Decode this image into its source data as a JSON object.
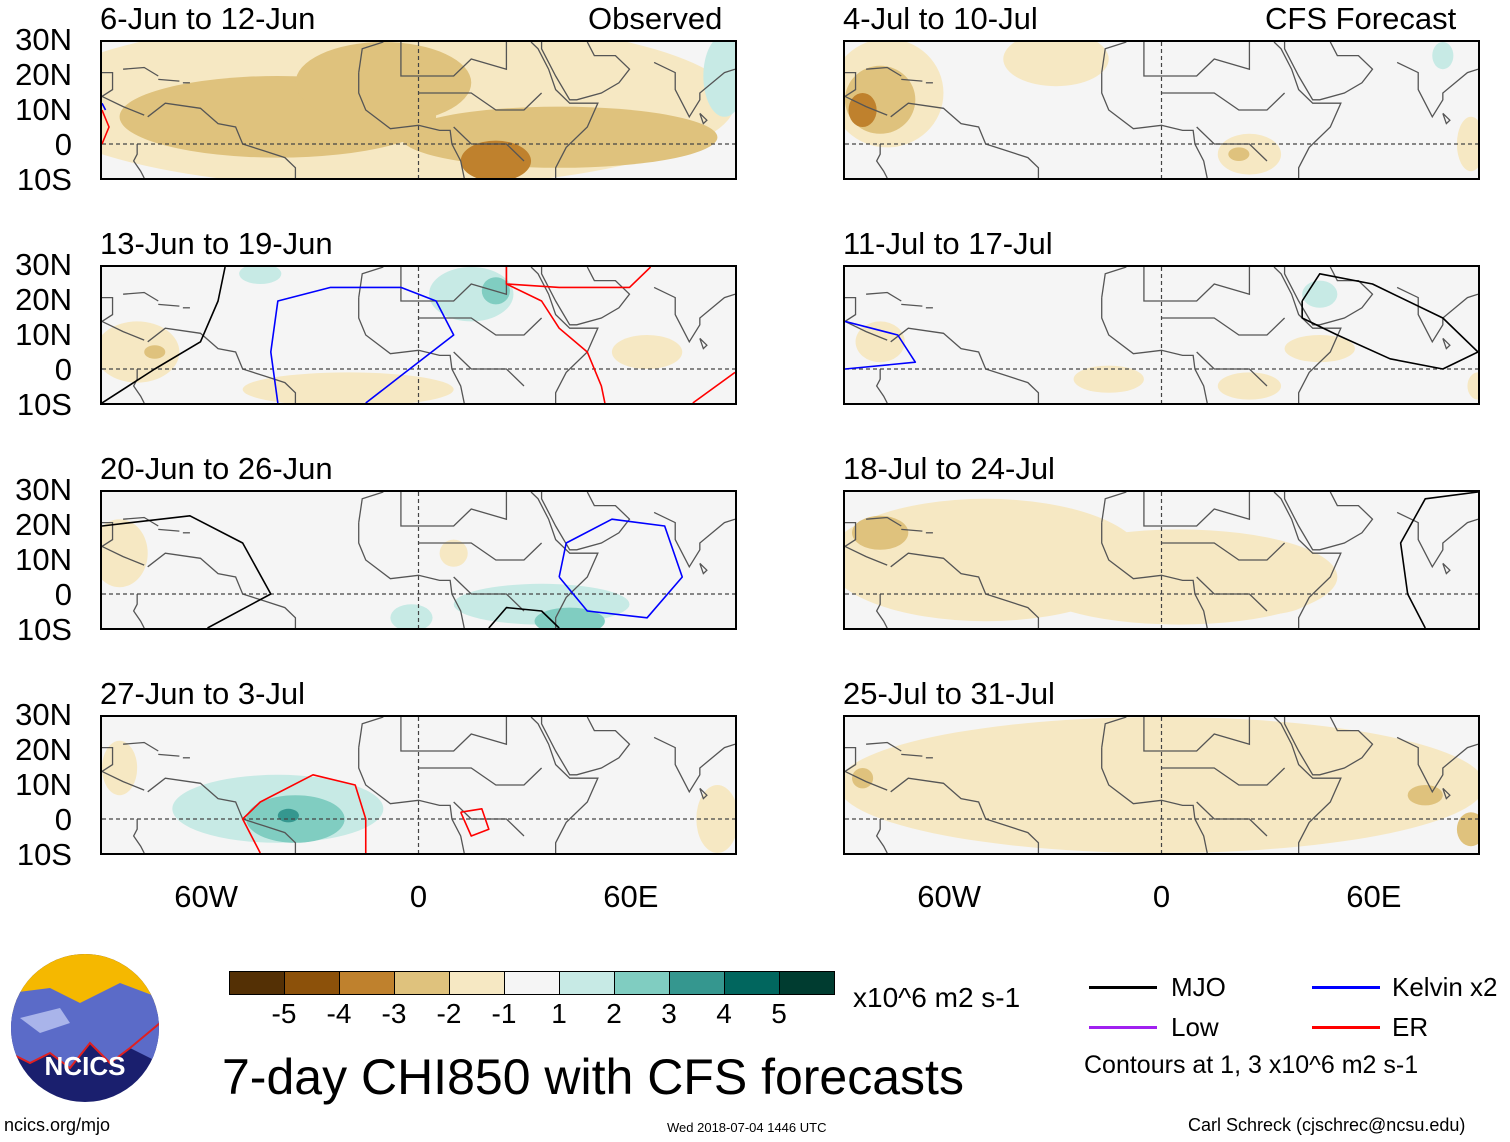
{
  "header": {
    "observed_label": "Observed",
    "forecast_label": "CFS Forecast"
  },
  "axes": {
    "lat_labels": [
      "30N",
      "20N",
      "10N",
      "0",
      "10S"
    ],
    "lon_labels": [
      "60W",
      "0",
      "60E"
    ],
    "lat_range": [
      -10,
      30
    ],
    "lon_range": [
      -90,
      90
    ]
  },
  "colors": {
    "levels": [
      -5,
      -4,
      -3,
      -2,
      -1,
      0,
      1,
      2,
      3,
      4,
      5
    ],
    "-5": "#543005",
    "-4": "#8c510a",
    "-3": "#bf812d",
    "-2": "#dfc27d",
    "-1": "#f6e8c3",
    "0": "#f5f5f5",
    "1": "#c7eae5",
    "2": "#80cdc1",
    "3": "#35978f",
    "4": "#01665e",
    "5": "#003c30",
    "mjo": "#000000",
    "kelvin": "#0000ff",
    "low": "#a020f0",
    "er": "#ff0000"
  },
  "panels": [
    {
      "title": "6-Jun to 12-Jun",
      "blobs": [
        [
          -10,
          12,
          100,
          25,
          -1
        ],
        [
          -40,
          8,
          45,
          12,
          -2
        ],
        [
          -10,
          18,
          25,
          12,
          -2
        ],
        [
          40,
          2,
          45,
          9,
          -2
        ],
        [
          22,
          -5,
          10,
          6,
          -3
        ],
        [
          87,
          20,
          6,
          12,
          1
        ]
      ],
      "contours": [
        {
          "type": "er",
          "pts": [
            [
              -90,
              10
            ],
            [
              -88,
              5
            ],
            [
              -90,
              0
            ]
          ]
        },
        {
          "type": "kelvin",
          "pts": [
            [
              -90,
              12
            ],
            [
              -89,
              10
            ]
          ]
        }
      ]
    },
    {
      "title": "13-Jun to 19-Jun",
      "blobs": [
        [
          -80,
          5,
          12,
          9,
          -1
        ],
        [
          -20,
          -6,
          30,
          5,
          -1
        ],
        [
          65,
          5,
          10,
          5,
          -1
        ],
        [
          -75,
          5,
          3,
          2,
          -2
        ],
        [
          15,
          22,
          12,
          8,
          1
        ],
        [
          -45,
          28,
          6,
          3,
          1
        ],
        [
          22,
          23,
          4,
          4,
          2
        ]
      ],
      "contours": [
        {
          "type": "mjo",
          "pts": [
            [
              -90,
              -10
            ],
            [
              -75,
              0
            ],
            [
              -62,
              8
            ],
            [
              -57,
              20
            ],
            [
              -55,
              30
            ]
          ]
        },
        {
          "type": "kelvin",
          "pts": [
            [
              -40,
              -10
            ],
            [
              -42,
              5
            ],
            [
              -40,
              20
            ],
            [
              -25,
              24
            ],
            [
              -5,
              24
            ],
            [
              5,
              20
            ],
            [
              10,
              10
            ],
            [
              -5,
              -2
            ],
            [
              -15,
              -10
            ]
          ]
        },
        {
          "type": "er",
          "pts": [
            [
              25,
              30
            ],
            [
              25,
              25
            ],
            [
              35,
              20
            ],
            [
              40,
              12
            ],
            [
              48,
              5
            ],
            [
              52,
              -5
            ],
            [
              53,
              -10
            ]
          ]
        },
        {
          "type": "er",
          "pts": [
            [
              25,
              25
            ],
            [
              40,
              24
            ],
            [
              60,
              24
            ],
            [
              66,
              30
            ]
          ]
        },
        {
          "type": "er",
          "pts": [
            [
              78,
              -10
            ],
            [
              90,
              -1
            ]
          ]
        }
      ]
    },
    {
      "title": "20-Jun to 26-Jun",
      "blobs": [
        [
          -85,
          12,
          8,
          10,
          -1
        ],
        [
          10,
          12,
          4,
          4,
          -1
        ],
        [
          35,
          -3,
          25,
          6,
          1
        ],
        [
          -2,
          -7,
          6,
          4,
          1
        ],
        [
          43,
          -8,
          10,
          4,
          2
        ]
      ],
      "contours": [
        {
          "type": "mjo",
          "pts": [
            [
              -90,
              20
            ],
            [
              -65,
              23
            ],
            [
              -50,
              15
            ],
            [
              -42,
              0
            ],
            [
              -60,
              -10
            ]
          ]
        },
        {
          "type": "mjo",
          "pts": [
            [
              20,
              -10
            ],
            [
              25,
              -4
            ],
            [
              35,
              -5
            ],
            [
              40,
              -10
            ]
          ]
        },
        {
          "type": "kelvin",
          "pts": [
            [
              40,
              5
            ],
            [
              42,
              15
            ],
            [
              55,
              22
            ],
            [
              70,
              20
            ],
            [
              75,
              5
            ],
            [
              65,
              -7
            ],
            [
              48,
              -5
            ],
            [
              40,
              5
            ]
          ]
        }
      ]
    },
    {
      "title": "27-Jun to 3-Jul",
      "blobs": [
        [
          -40,
          3,
          30,
          10,
          1
        ],
        [
          -35,
          0,
          14,
          7,
          2
        ],
        [
          -37,
          1,
          3,
          2,
          3
        ],
        [
          85,
          0,
          6,
          10,
          -1
        ],
        [
          -85,
          15,
          5,
          8,
          -1
        ]
      ],
      "contours": [
        {
          "type": "er",
          "pts": [
            [
              -45,
              -10
            ],
            [
              -50,
              0
            ],
            [
              -45,
              5
            ],
            [
              -30,
              13
            ],
            [
              -18,
              10
            ],
            [
              -15,
              0
            ],
            [
              -15,
              -10
            ]
          ]
        },
        {
          "type": "er",
          "pts": [
            [
              12,
              2
            ],
            [
              18,
              3
            ],
            [
              20,
              -3
            ],
            [
              15,
              -5
            ],
            [
              12,
              2
            ]
          ]
        }
      ]
    },
    {
      "title": "4-Jul to 10-Jul",
      "blobs": [
        [
          -78,
          15,
          16,
          16,
          -1
        ],
        [
          -30,
          25,
          15,
          8,
          -1
        ],
        [
          -80,
          13,
          10,
          10,
          -2
        ],
        [
          -85,
          10,
          4,
          5,
          -3
        ],
        [
          25,
          -3,
          9,
          6,
          -1
        ],
        [
          88,
          0,
          4,
          8,
          -1
        ],
        [
          22,
          -3,
          3,
          2,
          -2
        ],
        [
          80,
          26,
          3,
          4,
          1
        ]
      ],
      "contours": []
    },
    {
      "title": "11-Jul to 17-Jul",
      "blobs": [
        [
          -80,
          8,
          7,
          6,
          -1
        ],
        [
          -15,
          -3,
          10,
          4,
          -1
        ],
        [
          25,
          -5,
          9,
          4,
          -1
        ],
        [
          45,
          6,
          10,
          4,
          -1
        ],
        [
          90,
          -5,
          3,
          4,
          -1
        ],
        [
          45,
          22,
          5,
          4,
          1
        ]
      ],
      "contours": [
        {
          "type": "mjo",
          "pts": [
            [
              40,
              20
            ],
            [
              45,
              28
            ],
            [
              60,
              25
            ],
            [
              80,
              15
            ],
            [
              90,
              5
            ],
            [
              80,
              0
            ],
            [
              65,
              3
            ],
            [
              50,
              10
            ],
            [
              40,
              15
            ],
            [
              40,
              20
            ]
          ]
        },
        {
          "type": "kelvin",
          "pts": [
            [
              -90,
              0
            ],
            [
              -70,
              2
            ],
            [
              -75,
              10
            ],
            [
              -90,
              14
            ]
          ]
        }
      ]
    },
    {
      "title": "18-Jul to 24-Jul",
      "blobs": [
        [
          -50,
          10,
          45,
          18,
          -1
        ],
        [
          5,
          5,
          45,
          14,
          -1
        ],
        [
          30,
          2,
          15,
          8,
          -1
        ],
        [
          -80,
          18,
          8,
          5,
          -2
        ]
      ],
      "contours": [
        {
          "type": "mjo",
          "pts": [
            [
              90,
              30
            ],
            [
              75,
              28
            ],
            [
              68,
              15
            ],
            [
              70,
              0
            ],
            [
              75,
              -10
            ]
          ]
        }
      ]
    },
    {
      "title": "25-Jul to 31-Jul",
      "blobs": [
        [
          0,
          10,
          92,
          20,
          -1
        ],
        [
          75,
          7,
          5,
          3,
          -2
        ],
        [
          -85,
          12,
          3,
          3,
          -2
        ],
        [
          88,
          -3,
          4,
          5,
          -2
        ]
      ],
      "contours": []
    }
  ],
  "colorbar": {
    "labels": [
      "-5",
      "-4",
      "-3",
      "-2",
      "-1",
      "1",
      "2",
      "3",
      "4",
      "5"
    ],
    "units": "x10^6 m2 s-1"
  },
  "legend": {
    "mjo": "MJO",
    "kelvin": "Kelvin x2",
    "low": "Low",
    "er": "ER",
    "note": "Contours at 1, 3 x10^6 m2 s-1"
  },
  "footer": {
    "title": "7-day CHI850 with CFS forecasts",
    "url": "ncics.org/mjo",
    "timestamp": "Wed 2018-07-04 1446 UTC",
    "author": "Carl Schreck (cjschrec@ncsu.edu)",
    "logo_text": "NCICS"
  }
}
